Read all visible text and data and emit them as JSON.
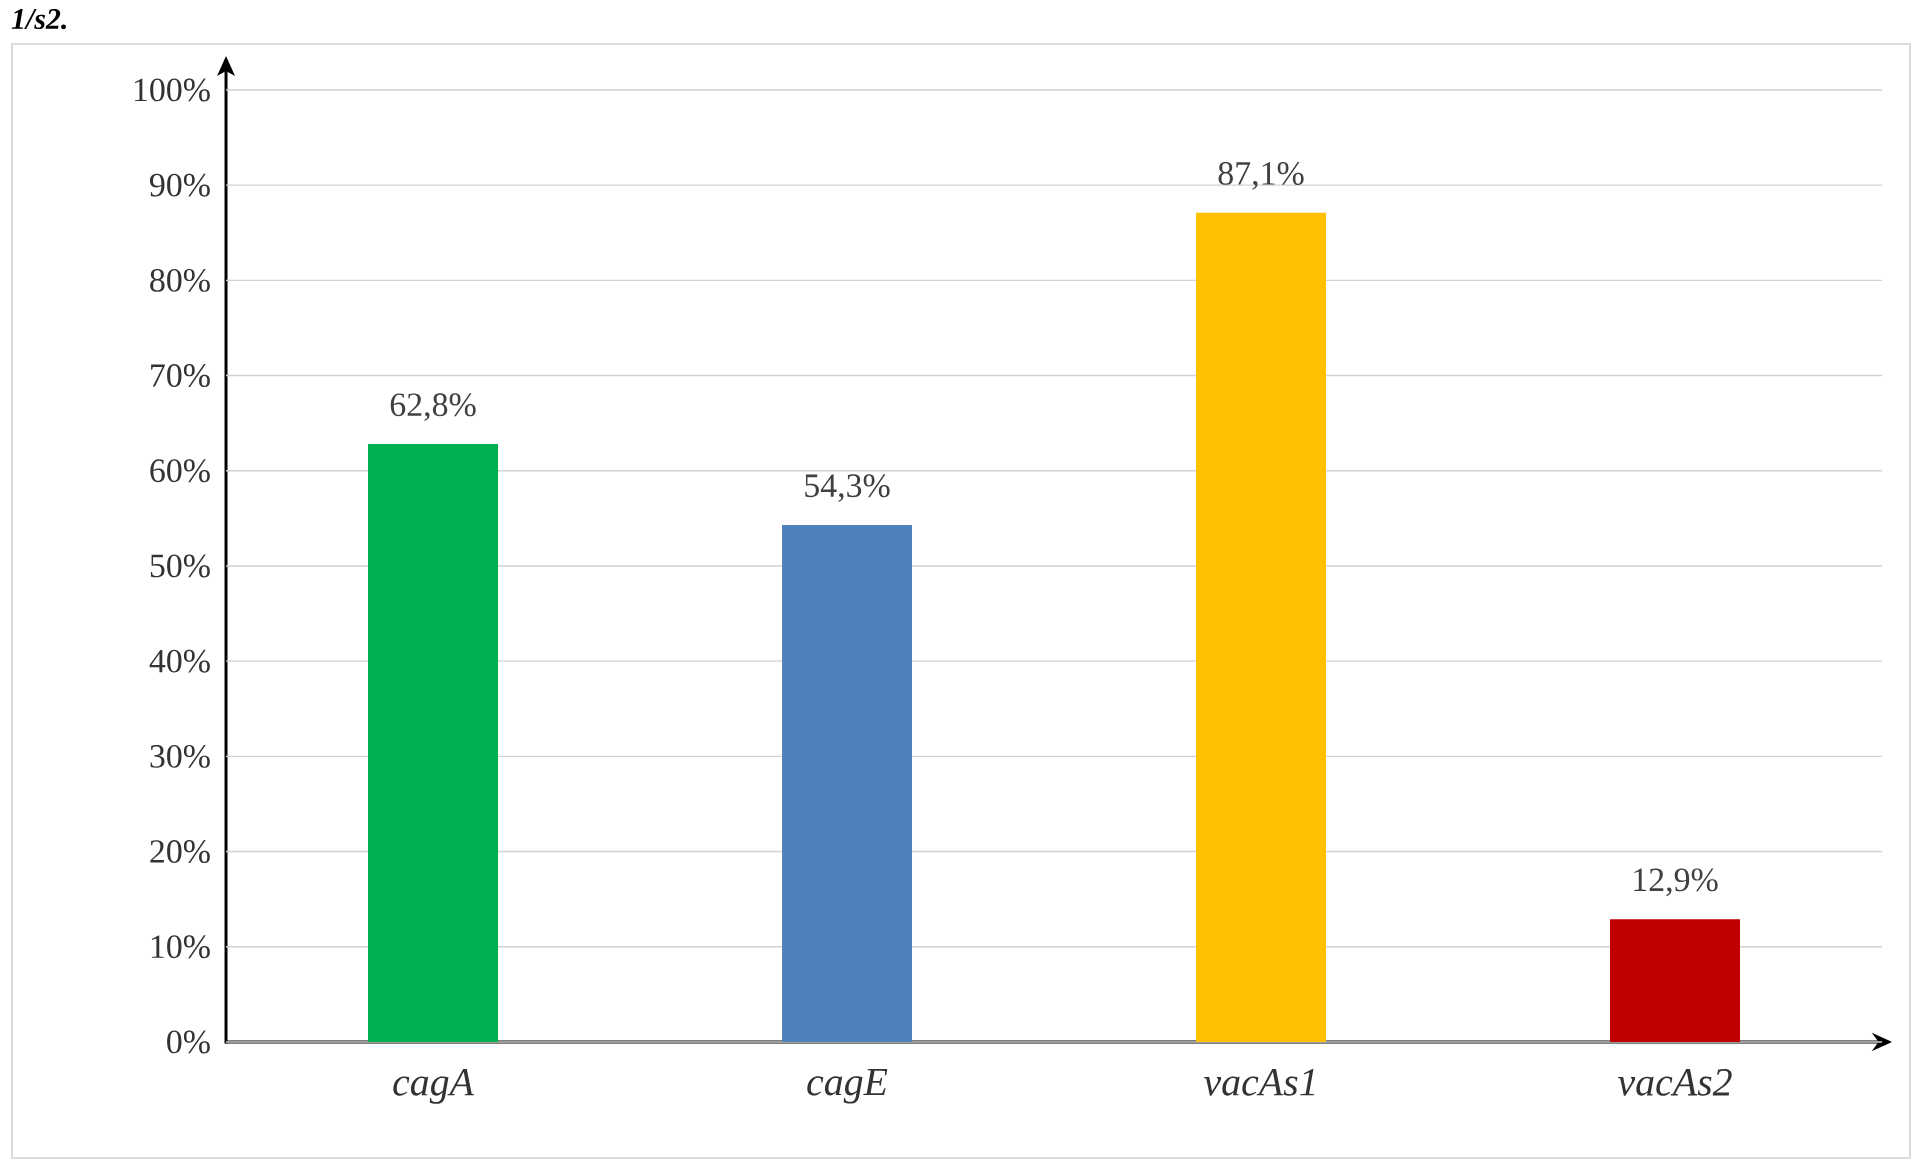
{
  "chart_data": {
    "type": "bar",
    "annotations": [
      "1/s2."
    ],
    "categories": [
      "cagA",
      "cagE",
      "vacAs1",
      "vacAs2"
    ],
    "values": [
      62.8,
      54.3,
      87.1,
      12.9
    ],
    "colors": [
      "#00b050",
      "#4f81bd",
      "#ffc000",
      "#c00000"
    ],
    "value_labels": [
      "62,8%",
      "54,3%",
      "87,1%",
      "12,9%"
    ],
    "ylim": [
      0,
      100
    ],
    "yticks": [
      {
        "value": 0,
        "label": "0%"
      },
      {
        "value": 10,
        "label": "10%"
      },
      {
        "value": 20,
        "label": "20%"
      },
      {
        "value": 30,
        "label": "30%"
      },
      {
        "value": 40,
        "label": "40%"
      },
      {
        "value": 50,
        "label": "50%"
      },
      {
        "value": 60,
        "label": "60%"
      },
      {
        "value": 70,
        "label": "70%"
      },
      {
        "value": 80,
        "label": "80%"
      },
      {
        "value": 90,
        "label": "90%"
      },
      {
        "value": 100,
        "label": "100%"
      }
    ],
    "grid": "y"
  }
}
